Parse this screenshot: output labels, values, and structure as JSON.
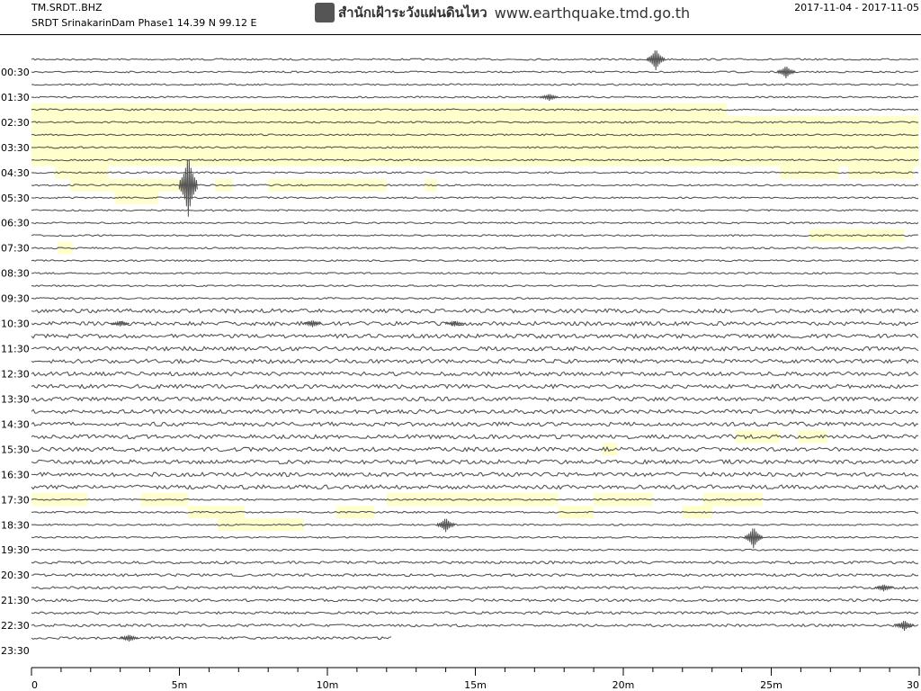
{
  "header": {
    "station": "TM.SRDT..BHZ",
    "description": "SRDT SrinakarinDam Phase1  14.39 N 99.12 E",
    "organization": "สำนักเฝ้าระวังแผ่นดินไหว",
    "website": "www.earthquake.tmd.go.th",
    "date_range": "2017-11-04 - 2017-11-05"
  },
  "colors": {
    "trace": "#555555",
    "highlight": "#ffffcc",
    "axis": "#000000"
  },
  "chart_data": {
    "type": "line",
    "title": "",
    "xlabel": "",
    "ylabel": "",
    "xlim": [
      0,
      30
    ],
    "x_tick_values": [
      0,
      5,
      10,
      15,
      20,
      25,
      30
    ],
    "x_tick_labels": [
      "0",
      "5m",
      "10m",
      "15m",
      "20m",
      "25m",
      "30"
    ],
    "trace_count": 47,
    "y_tick_labels": [
      "00:30",
      "01:30",
      "02:30",
      "03:30",
      "04:30",
      "05:30",
      "06:30",
      "07:30",
      "08:30",
      "09:30",
      "10:30",
      "11:30",
      "12:30",
      "13:30",
      "14:30",
      "15:30",
      "16:30",
      "17:30",
      "18:30",
      "19:30",
      "20:30",
      "21:30",
      "22:30",
      "23:30"
    ],
    "last_trace_end_minutes": 12.2,
    "events": [
      {
        "trace": 0,
        "minute": 21.1,
        "amplitude": 12
      },
      {
        "trace": 1,
        "minute": 25.5,
        "amplitude": 7
      },
      {
        "trace": 3,
        "minute": 17.5,
        "amplitude": 4
      },
      {
        "trace": 10,
        "minute": 5.3,
        "amplitude": 35
      },
      {
        "trace": 21,
        "minute": 3.0,
        "amplitude": 3
      },
      {
        "trace": 21,
        "minute": 9.5,
        "amplitude": 4
      },
      {
        "trace": 21,
        "minute": 14.3,
        "amplitude": 3
      },
      {
        "trace": 37,
        "minute": 14.0,
        "amplitude": 8
      },
      {
        "trace": 38,
        "minute": 24.4,
        "amplitude": 12
      },
      {
        "trace": 42,
        "minute": 28.8,
        "amplitude": 4
      },
      {
        "trace": 45,
        "minute": 29.5,
        "amplitude": 6
      },
      {
        "trace": 46,
        "minute": 3.3,
        "amplitude": 4
      }
    ],
    "gap_intervals": [
      {
        "trace": 4,
        "start": 0,
        "end": 23.5
      },
      {
        "trace": 5,
        "start": 0,
        "end": 30
      },
      {
        "trace": 6,
        "start": 0,
        "end": 30
      },
      {
        "trace": 7,
        "start": 0,
        "end": 30
      },
      {
        "trace": 8,
        "start": 0,
        "end": 30
      },
      {
        "trace": 9,
        "start": 0.8,
        "end": 2.6
      },
      {
        "trace": 9,
        "start": 25.3,
        "end": 27.3
      },
      {
        "trace": 9,
        "start": 27.6,
        "end": 29.8
      },
      {
        "trace": 10,
        "start": 1.3,
        "end": 5.3
      },
      {
        "trace": 10,
        "start": 6.2,
        "end": 6.8
      },
      {
        "trace": 10,
        "start": 8.0,
        "end": 12.0
      },
      {
        "trace": 10,
        "start": 13.3,
        "end": 13.7
      },
      {
        "trace": 11,
        "start": 2.8,
        "end": 4.3
      },
      {
        "trace": 14,
        "start": 26.3,
        "end": 29.5
      },
      {
        "trace": 15,
        "start": 0.9,
        "end": 1.4
      },
      {
        "trace": 30,
        "start": 23.8,
        "end": 25.3
      },
      {
        "trace": 30,
        "start": 25.9,
        "end": 26.9
      },
      {
        "trace": 31,
        "start": 19.3,
        "end": 19.8
      },
      {
        "trace": 35,
        "start": 0,
        "end": 1.9
      },
      {
        "trace": 35,
        "start": 3.7,
        "end": 5.3
      },
      {
        "trace": 35,
        "start": 12.0,
        "end": 17.8
      },
      {
        "trace": 35,
        "start": 19.0,
        "end": 21.0
      },
      {
        "trace": 35,
        "start": 22.7,
        "end": 24.7
      },
      {
        "trace": 36,
        "start": 5.3,
        "end": 7.2
      },
      {
        "trace": 36,
        "start": 10.3,
        "end": 11.6
      },
      {
        "trace": 36,
        "start": 17.8,
        "end": 19.0
      },
      {
        "trace": 36,
        "start": 22.0,
        "end": 23.0
      },
      {
        "trace": 37,
        "start": 6.3,
        "end": 9.2
      }
    ]
  }
}
